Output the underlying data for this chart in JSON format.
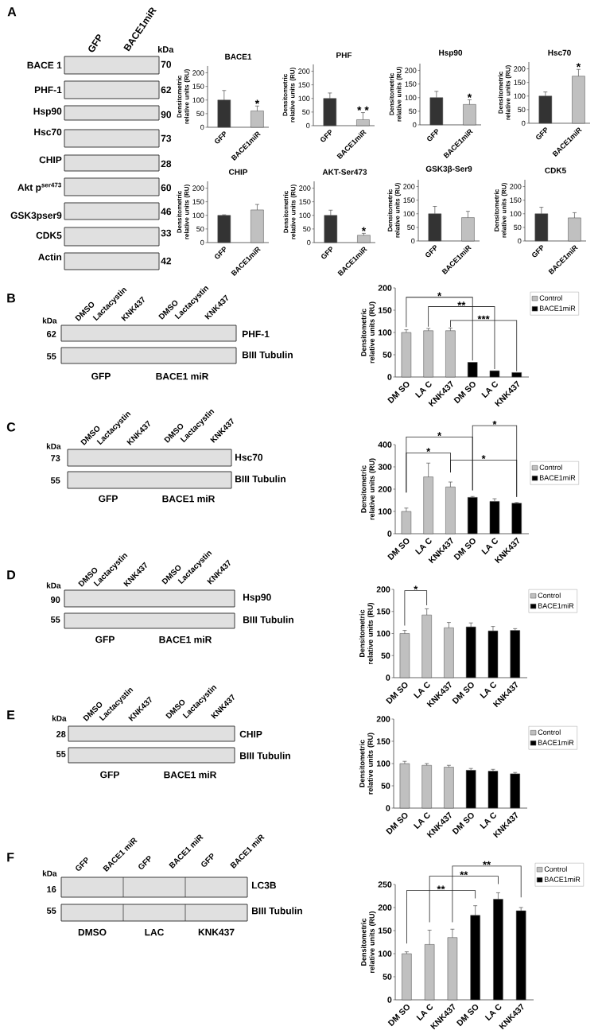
{
  "chart_data": [
    {
      "type": "other",
      "title": "A",
      "annotations": [
        "GFP",
        "BACE1miR",
        "kDa",
        "BACE 1",
        "PHF-1",
        "Hsp90",
        "Hsc70",
        "CHIP",
        "Akt p$^{ser473}$",
        "GSK3pser9",
        "CDK5",
        "Actin",
        "70",
        "62",
        "90",
        "73",
        "28",
        "60",
        "46",
        "33",
        "42"
      ]
    },
    {
      "type": "bar",
      "title": "BACE1",
      "ylabel": "Densitometric relative units (RU)",
      "categories": [
        "GFP",
        "BACE1miR"
      ],
      "values": [
        100,
        60
      ],
      "colors": [
        "#333333",
        "#c0c0c0"
      ],
      "errors": [
        [
          100,
          135
        ],
        [
          60,
          78
        ]
      ],
      "ylim": [
        0,
        225
      ],
      "yticks": [
        0,
        50,
        100,
        150,
        200
      ],
      "annotations": [
        {
          "text": "*",
          "x": "BACE1miR",
          "y": 78
        }
      ]
    },
    {
      "type": "bar",
      "title": "PHF",
      "ylabel": "Densitometric relative units (RU)",
      "categories": [
        "GFP",
        "BACE1miR"
      ],
      "values": [
        100,
        22
      ],
      "colors": [
        "#333333",
        "#c0c0c0"
      ],
      "errors": [
        [
          100,
          120
        ],
        [
          22,
          48
        ]
      ],
      "ylim": [
        0,
        225
      ],
      "yticks": [
        0,
        50,
        100,
        150,
        200
      ],
      "annotations": [
        {
          "text": "* *",
          "x": "BACE1miR",
          "y": 48
        }
      ]
    },
    {
      "type": "bar",
      "title": "Hsp90",
      "ylabel": "Densitometric relative units (RU)",
      "categories": [
        "GFP",
        "BACE1miR"
      ],
      "values": [
        100,
        75
      ],
      "colors": [
        "#333333",
        "#c0c0c0"
      ],
      "errors": [
        [
          100,
          123
        ],
        [
          75,
          92
        ]
      ],
      "ylim": [
        0,
        225
      ],
      "yticks": [
        0,
        50,
        100,
        150,
        200
      ],
      "annotations": [
        {
          "text": "*",
          "x": "BACE1miR",
          "y": 92
        }
      ]
    },
    {
      "type": "bar",
      "title": "Hsc70",
      "ylabel": "Densitometric relative units (RU)",
      "categories": [
        "GFP",
        "BACE1miR"
      ],
      "values": [
        100,
        173
      ],
      "colors": [
        "#333333",
        "#c0c0c0"
      ],
      "errors": [
        [
          100,
          115
        ],
        [
          173,
          198
        ]
      ],
      "ylim": [
        0,
        225
      ],
      "yticks": [
        0,
        50,
        100,
        150,
        200
      ],
      "annotations": [
        {
          "text": "*",
          "x": "BACE1miR",
          "y": 198
        }
      ]
    },
    {
      "type": "bar",
      "title": "CHIP",
      "ylabel": "Densitometric relative units (RU)",
      "categories": [
        "GFP",
        "BACE1miR"
      ],
      "values": [
        100,
        120
      ],
      "colors": [
        "#333333",
        "#c0c0c0"
      ],
      "errors": [
        [
          100,
          102
        ],
        [
          120,
          140
        ]
      ],
      "ylim": [
        0,
        225
      ],
      "yticks": [
        0,
        50,
        100,
        150,
        200
      ]
    },
    {
      "type": "bar",
      "title": "AKT-Ser473",
      "ylabel": "Densitometric relative units (RU)",
      "categories": [
        "GFP",
        "BACE1miR"
      ],
      "values": [
        100,
        27
      ],
      "colors": [
        "#333333",
        "#c0c0c0"
      ],
      "errors": [
        [
          100,
          119
        ],
        [
          27,
          34
        ]
      ],
      "ylim": [
        0,
        225
      ],
      "yticks": [
        0,
        50,
        100,
        150,
        200
      ],
      "annotations": [
        {
          "text": "*",
          "x": "BACE1miR",
          "y": 34
        }
      ]
    },
    {
      "type": "bar",
      "title": "GSK3β-Ser9",
      "ylabel": "Densitometric relative units (RU)",
      "categories": [
        "GFP",
        "BACE1miR"
      ],
      "values": [
        100,
        86
      ],
      "colors": [
        "#333333",
        "#c0c0c0"
      ],
      "errors": [
        [
          100,
          127
        ],
        [
          86,
          109
        ]
      ],
      "ylim": [
        0,
        225
      ],
      "yticks": [
        0,
        50,
        100,
        150,
        200
      ]
    },
    {
      "type": "bar",
      "title": "CDK5",
      "ylabel": "Densitometric relative units (RU)",
      "categories": [
        "GFP",
        "BACE1miR"
      ],
      "values": [
        100,
        85
      ],
      "colors": [
        "#333333",
        "#c0c0c0"
      ],
      "errors": [
        [
          100,
          124
        ],
        [
          85,
          104
        ]
      ],
      "ylim": [
        0,
        225
      ],
      "yticks": [
        0,
        50,
        100,
        150,
        200
      ]
    },
    {
      "type": "other",
      "title": "B",
      "annotations": [
        "kDa",
        "DMSO",
        "Lactacystin",
        "KNK437",
        "DMSO",
        "Lactacystin",
        "KNK437",
        "62",
        "55",
        "PHF-1",
        "BIII Tubulin",
        "GFP",
        "BACE1 miR"
      ]
    },
    {
      "type": "bar",
      "ylabel": "Densitometric relative units (RU)",
      "categories": [
        "DM SO",
        "LA C",
        "KNK437",
        "DM SO",
        "LA C",
        "KNK437"
      ],
      "series": [
        {
          "name": "Control",
          "color": "#c0c0c0",
          "values": [
            100,
            104,
            104,
            null,
            null,
            null
          ],
          "errors": [
            [
              100,
              106
            ],
            [
              104,
              109
            ],
            [
              104,
              110
            ],
            null,
            null,
            null
          ]
        },
        {
          "name": "BACE1miR",
          "color": "#000000",
          "values": [
            null,
            null,
            null,
            33,
            14,
            10
          ]
        }
      ],
      "ylim": [
        0,
        200
      ],
      "yticks": [
        0,
        50,
        100,
        150,
        200
      ],
      "legend": "top right",
      "annotations": [
        "*",
        "**",
        "***"
      ]
    },
    {
      "type": "other",
      "title": "C",
      "annotations": [
        "kDa",
        "DMSO",
        "Lactacystin",
        "KNK437",
        "DMSO",
        "Lactacystin",
        "KNK437",
        "73",
        "55",
        "Hsc70",
        "BIII Tubulin",
        "GFP",
        "BACE1 miR"
      ]
    },
    {
      "type": "bar",
      "ylabel": "Densitometric relative units (RU)",
      "categories": [
        "DM SO",
        "LA C",
        "KNK437",
        "DM SO",
        "LA C",
        "KNK437"
      ],
      "series": [
        {
          "name": "Control",
          "color": "#c0c0c0",
          "values": [
            100,
            255,
            210,
            null,
            null,
            null
          ],
          "errors": [
            [
              100,
              115
            ],
            [
              255,
              317
            ],
            [
              210,
              232
            ],
            null,
            null,
            null
          ]
        },
        {
          "name": "BACE1miR",
          "color": "#000000",
          "values": [
            null,
            null,
            null,
            163,
            145,
            137
          ],
          "errors": [
            null,
            null,
            null,
            [
              163,
              167
            ],
            [
              145,
              157
            ],
            [
              137,
              140
            ]
          ]
        }
      ],
      "ylim": [
        0,
        400
      ],
      "yticks": [
        0,
        100,
        200,
        300,
        400
      ],
      "legend": "top right",
      "annotations": [
        "*",
        "*",
        "*",
        "*"
      ]
    },
    {
      "type": "other",
      "title": "D",
      "annotations": [
        "kDa",
        "DMSO",
        "Lactacystin",
        "KNK437",
        "DMSO",
        "Lactacystin",
        "KNK437",
        "90",
        "55",
        "Hsp90",
        "BIII Tubulin",
        "GFP",
        "BACE1 miR"
      ]
    },
    {
      "type": "bar",
      "ylabel": "Densitometric relative units (RU)",
      "categories": [
        "DM SO",
        "LA C",
        "KNK437",
        "DM SO",
        "LA C",
        "KNK437"
      ],
      "series": [
        {
          "name": "Control",
          "color": "#c0c0c0",
          "values": [
            100,
            142,
            113,
            null,
            null,
            null
          ],
          "errors": [
            [
              100,
              107
            ],
            [
              142,
              156
            ],
            [
              113,
              125
            ],
            null,
            null,
            null
          ]
        },
        {
          "name": "BACE1miR",
          "color": "#000000",
          "values": [
            null,
            null,
            null,
            115,
            106,
            107
          ],
          "errors": [
            null,
            null,
            null,
            [
              115,
              124
            ],
            [
              106,
              116
            ],
            [
              107,
              111
            ]
          ]
        }
      ],
      "ylim": [
        0,
        200
      ],
      "yticks": [
        0,
        50,
        100,
        150,
        200
      ],
      "legend": "top right",
      "annotations": [
        "*"
      ]
    },
    {
      "type": "other",
      "title": "E",
      "annotations": [
        "kDa",
        "DMSO",
        "Lactacystin",
        "KNK437",
        "DMSO",
        "Lactacystin",
        "KNK437",
        "28",
        "55",
        "CHIP",
        "BIII Tubulin",
        "GFP",
        "BACE1 miR"
      ]
    },
    {
      "type": "bar",
      "ylabel": "Densitometric relative units (RU)",
      "categories": [
        "DM SO",
        "LA C",
        "KNK437",
        "DM SO",
        "LA C",
        "KNK437"
      ],
      "series": [
        {
          "name": "Control",
          "color": "#c0c0c0",
          "values": [
            100,
            96,
            92,
            null,
            null,
            null
          ],
          "errors": [
            [
              100,
              105
            ],
            [
              96,
              100
            ],
            [
              92,
              96
            ],
            null,
            null,
            null
          ]
        },
        {
          "name": "BACE1miR",
          "color": "#000000",
          "values": [
            null,
            null,
            null,
            85,
            83,
            77
          ],
          "errors": [
            null,
            null,
            null,
            [
              85,
              89
            ],
            [
              83,
              87
            ],
            [
              77,
              80
            ]
          ]
        }
      ],
      "ylim": [
        0,
        200
      ],
      "yticks": [
        0,
        50,
        100,
        150,
        200
      ],
      "legend": "top right"
    },
    {
      "type": "other",
      "title": "F",
      "annotations": [
        "kDa",
        "GFP",
        "BACE1 miR",
        "GFP",
        "BACE1 miR",
        "GFP",
        "BACE1 miR",
        "16",
        "55",
        "LC3B",
        "BIII Tubulin",
        "DMSO",
        "LAC",
        "KNK437"
      ]
    },
    {
      "type": "bar",
      "ylabel": "Densitometric relative units (RU)",
      "categories": [
        "DM SO",
        "LA C",
        "KNK437",
        "DM SO",
        "LA C",
        "KNK437"
      ],
      "series": [
        {
          "name": "Control",
          "color": "#c0c0c0",
          "values": [
            100,
            120,
            135,
            null,
            null,
            null
          ],
          "errors": [
            [
              100,
              104
            ],
            [
              120,
              151
            ],
            [
              135,
              153
            ],
            null,
            null,
            null
          ]
        },
        {
          "name": "BACE1miR",
          "color": "#000000",
          "values": [
            null,
            null,
            null,
            183,
            218,
            193
          ],
          "errors": [
            null,
            null,
            null,
            [
              183,
              204
            ],
            [
              218,
              232
            ],
            [
              193,
              200
            ]
          ]
        }
      ],
      "ylim": [
        0,
        250
      ],
      "yticks": [
        0,
        50,
        100,
        150,
        200,
        250
      ],
      "legend": "top right",
      "annotations": [
        "**",
        "**",
        "**"
      ]
    }
  ]
}
